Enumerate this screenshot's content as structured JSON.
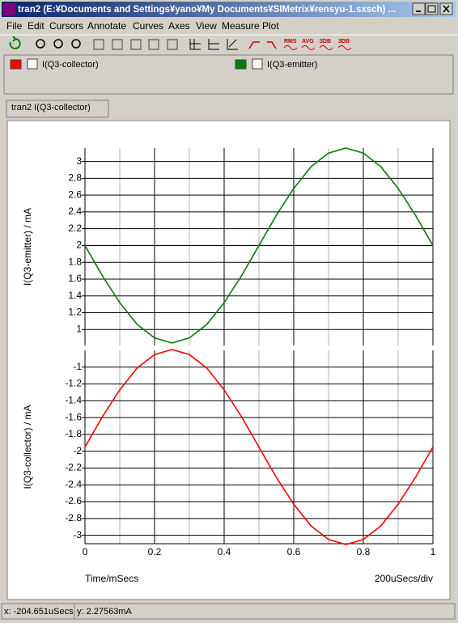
{
  "window": {
    "title": "tran2 (E:¥Documents and Settings¥yano¥My Documents¥SIMetrix¥rensyu-1.sxsch) ..."
  },
  "menu": [
    "File",
    "Edit",
    "Cursors",
    "Annotate",
    "Curves",
    "Axes",
    "View",
    "Measure",
    "Plot"
  ],
  "toolbar_labels": [
    "RMS",
    "AVG",
    "3DB",
    "3DB"
  ],
  "tab": "tran2 I(Q3-collector)",
  "status": {
    "x": "x: -204.651uSecs",
    "y": "y: 2.27563mA"
  },
  "chart_data": [
    {
      "type": "line",
      "ylabel": "I(Q3-emitter) / mA",
      "x": [
        0,
        0.05,
        0.1,
        0.15,
        0.2,
        0.25,
        0.3,
        0.35,
        0.4,
        0.45,
        0.5,
        0.55,
        0.6,
        0.65,
        0.7,
        0.75,
        0.8,
        0.85,
        0.9,
        0.95,
        1
      ],
      "series": [
        {
          "name": "I(Q3-emitter)",
          "color": "#008000",
          "values": [
            2,
            1.64,
            1.32,
            1.06,
            0.9,
            0.84,
            0.9,
            1.06,
            1.32,
            1.64,
            2,
            2.36,
            2.68,
            2.94,
            3.1,
            3.16,
            3.1,
            2.94,
            2.68,
            2.36,
            2
          ]
        }
      ],
      "xlim": [
        0,
        1
      ],
      "xticks": [
        0,
        0.2,
        0.4,
        0.6,
        0.8,
        1
      ],
      "xminorticks": [
        0.1,
        0.3,
        0.5,
        0.7,
        0.9
      ],
      "show_xtick_labels": false,
      "ylim": [
        0.81,
        3.16
      ],
      "yticks": [
        1,
        1.2,
        1.4,
        1.6,
        1.8,
        2,
        2.2,
        2.4,
        2.6,
        2.8,
        3
      ],
      "grid": true
    },
    {
      "type": "line",
      "ylabel": "I(Q3-collector) / mA",
      "xlabel": "Time/mSecs",
      "x_annotation": "200uSecs/div",
      "x": [
        0,
        0.05,
        0.1,
        0.15,
        0.2,
        0.25,
        0.3,
        0.35,
        0.4,
        0.45,
        0.5,
        0.55,
        0.6,
        0.65,
        0.7,
        0.75,
        0.8,
        0.85,
        0.9,
        0.95,
        1
      ],
      "series": [
        {
          "name": "I(Q3-collector)",
          "color": "#ff0000",
          "values": [
            -1.95,
            -1.59,
            -1.27,
            -1.01,
            -0.85,
            -0.79,
            -0.85,
            -1.01,
            -1.27,
            -1.59,
            -1.95,
            -2.31,
            -2.63,
            -2.89,
            -3.05,
            -3.11,
            -3.05,
            -2.89,
            -2.63,
            -2.31,
            -1.95
          ]
        }
      ],
      "xlim": [
        0,
        1
      ],
      "xticks": [
        0,
        0.2,
        0.4,
        0.6,
        0.8,
        1
      ],
      "xminorticks": [
        0.1,
        0.3,
        0.5,
        0.7,
        0.9
      ],
      "show_xtick_labels": true,
      "ylim": [
        -3.1,
        -0.8
      ],
      "yticks": [
        -3,
        -2.8,
        -2.6,
        -2.4,
        -2.2,
        -2,
        -1.8,
        -1.6,
        -1.4,
        -1.2,
        -1
      ],
      "grid": true
    }
  ]
}
